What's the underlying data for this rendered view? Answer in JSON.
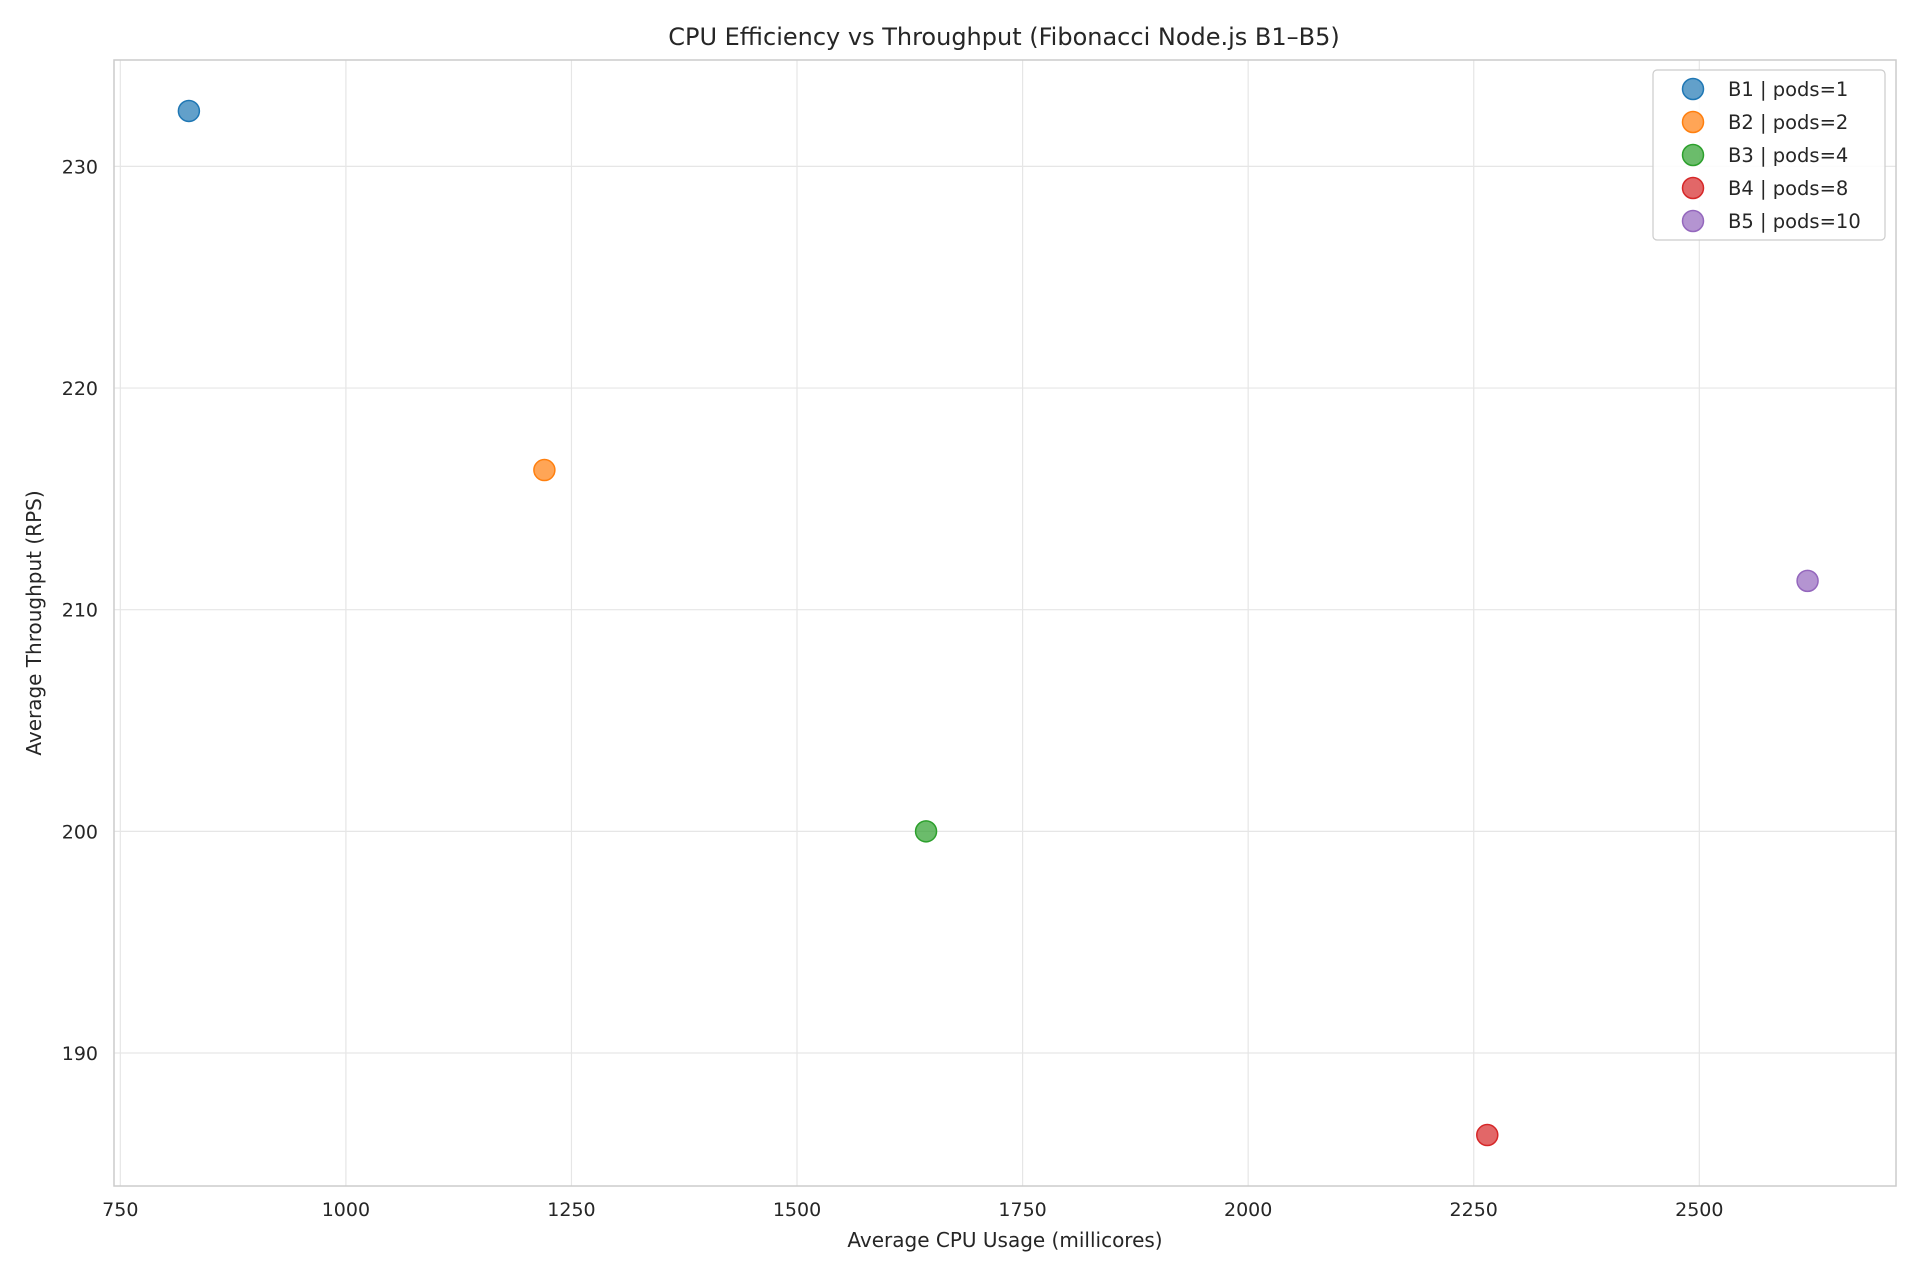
{
  "chart_data": {
    "type": "scatter",
    "title": "CPU Efficiency vs Throughput (Fibonacci Node.js B1–B5)",
    "xlabel": "Average CPU Usage (millicores)",
    "ylabel": "Average Throughput (RPS)",
    "xlim": [
      743,
      2718
    ],
    "ylim": [
      184,
      234.8
    ],
    "xticks": [
      750,
      1000,
      1250,
      1500,
      1750,
      2000,
      2250,
      2500
    ],
    "yticks": [
      190,
      200,
      210,
      220,
      230
    ],
    "grid": true,
    "legend_position": "top-right",
    "series": [
      {
        "name": "B1 | pods=1",
        "color": "#1f77b4",
        "x": 826,
        "y": 232.5
      },
      {
        "name": "B2 | pods=2",
        "color": "#ff7f0e",
        "x": 1220,
        "y": 216.3
      },
      {
        "name": "B3 | pods=4",
        "color": "#2ca02c",
        "x": 1643,
        "y": 200.0
      },
      {
        "name": "B4 | pods=8",
        "color": "#d62728",
        "x": 2265,
        "y": 186.3
      },
      {
        "name": "B5 | pods=10",
        "color": "#9467bd",
        "x": 2620,
        "y": 211.3
      }
    ]
  }
}
